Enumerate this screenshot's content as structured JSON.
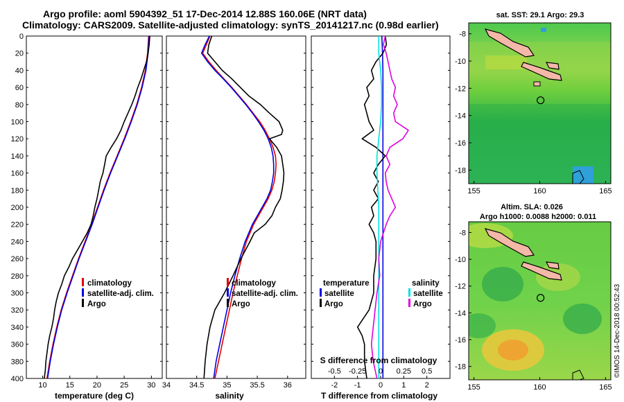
{
  "title_line1": "Argo profile: aoml 5904392_51 17-Dec-2014 12.88S 160.06E (NRT data)",
  "title_line2": "Climatology: CARS2009. Satellite-adjusted climatology: synTS_20141217.nc (0.98d earlier)",
  "credit": "©IMOS 14-Dec-2018 00:52:43",
  "colors": {
    "climatology": "#e00000",
    "satellite": "#0000e0",
    "argo": "#000000",
    "sat_cyan": "#00e0e0",
    "argo_magenta": "#e000e0"
  },
  "chart_data": [
    {
      "type": "line",
      "id": "temperature",
      "xlabel": "temperature (deg C)",
      "ylabel": "depth",
      "xlim": [
        7,
        32
      ],
      "ylim": [
        400,
        0
      ],
      "x_ticks": [
        "10",
        "15",
        "20",
        "25",
        "30"
      ],
      "y_ticks": [
        "0",
        "20",
        "40",
        "60",
        "80",
        "100",
        "120",
        "140",
        "160",
        "180",
        "200",
        "220",
        "240",
        "260",
        "280",
        "300",
        "320",
        "340",
        "360",
        "380",
        "400"
      ],
      "legend": [
        "climatology",
        "satellite-adj. clim.",
        "Argo"
      ],
      "series": [
        {
          "name": "climatology",
          "color": "#e00000",
          "depth": [
            0,
            20,
            40,
            60,
            80,
            100,
            120,
            140,
            160,
            180,
            200,
            220,
            240,
            260,
            280,
            300,
            320,
            340,
            360,
            380,
            400
          ],
          "values": [
            29.5,
            29.3,
            28.9,
            28.2,
            27.3,
            26.2,
            25.0,
            23.7,
            22.4,
            21.2,
            20.1,
            19.0,
            17.8,
            16.6,
            15.5,
            14.4,
            13.4,
            12.6,
            11.9,
            11.3,
            10.8
          ]
        },
        {
          "name": "satellite-adj. clim.",
          "color": "#0000e0",
          "depth": [
            0,
            20,
            40,
            60,
            80,
            100,
            120,
            140,
            160,
            180,
            200,
            220,
            240,
            260,
            280,
            300,
            320,
            340,
            360,
            380,
            400
          ],
          "values": [
            29.6,
            29.4,
            29.0,
            28.3,
            27.4,
            26.3,
            25.1,
            23.8,
            22.5,
            21.3,
            20.2,
            19.1,
            17.9,
            16.7,
            15.6,
            14.5,
            13.5,
            12.7,
            12.0,
            11.4,
            10.9
          ]
        },
        {
          "name": "Argo",
          "color": "#000000",
          "depth": [
            0,
            10,
            20,
            30,
            40,
            50,
            60,
            70,
            80,
            90,
            100,
            110,
            120,
            130,
            140,
            150,
            160,
            170,
            180,
            190,
            200,
            210,
            220,
            230,
            240,
            250,
            260,
            270,
            280,
            290,
            300,
            310,
            320,
            330,
            340,
            350,
            360,
            370,
            380,
            390,
            400
          ],
          "values": [
            29.7,
            29.6,
            29.4,
            29.1,
            28.6,
            28.1,
            27.5,
            27.0,
            26.4,
            25.7,
            25.0,
            24.4,
            23.6,
            22.6,
            21.7,
            21.4,
            21.1,
            20.6,
            20.3,
            20.0,
            19.6,
            19.3,
            18.9,
            18.2,
            17.3,
            16.4,
            15.5,
            14.8,
            14.0,
            13.5,
            12.9,
            12.5,
            12.2,
            12.0,
            11.7,
            11.3,
            11.0,
            10.8,
            10.6,
            10.5,
            10.3
          ]
        }
      ]
    },
    {
      "type": "line",
      "id": "salinity",
      "xlabel": "salinity",
      "ylabel": "depth",
      "xlim": [
        34.0,
        36.3
      ],
      "ylim": [
        400,
        0
      ],
      "x_ticks": [
        "34",
        "34.5",
        "35",
        "35.5",
        "36"
      ],
      "legend": [
        "climatology",
        "satellite-adj. clim.",
        "Argo"
      ],
      "series": [
        {
          "name": "climatology",
          "color": "#e00000",
          "depth": [
            0,
            10,
            20,
            30,
            40,
            50,
            60,
            70,
            80,
            90,
            100,
            110,
            120,
            130,
            140,
            150,
            160,
            170,
            180,
            190,
            200,
            210,
            220,
            240,
            260,
            280,
            300,
            320,
            340,
            360,
            380,
            400
          ],
          "values": [
            34.72,
            34.66,
            34.6,
            34.7,
            34.82,
            34.95,
            35.08,
            35.2,
            35.32,
            35.43,
            35.54,
            35.63,
            35.7,
            35.76,
            35.8,
            35.81,
            35.8,
            35.78,
            35.74,
            35.68,
            35.6,
            35.52,
            35.44,
            35.32,
            35.24,
            35.17,
            35.1,
            35.04,
            34.98,
            34.92,
            34.86,
            34.8
          ]
        },
        {
          "name": "satellite-adj. clim.",
          "color": "#0000e0",
          "depth": [
            0,
            10,
            20,
            30,
            40,
            50,
            60,
            70,
            80,
            90,
            100,
            110,
            120,
            130,
            140,
            150,
            160,
            170,
            180,
            190,
            200,
            210,
            220,
            240,
            260,
            280,
            300,
            320,
            340,
            360,
            380,
            400
          ],
          "values": [
            34.71,
            34.64,
            34.58,
            34.68,
            34.8,
            34.94,
            35.07,
            35.19,
            35.31,
            35.42,
            35.52,
            35.61,
            35.68,
            35.73,
            35.76,
            35.77,
            35.77,
            35.75,
            35.72,
            35.66,
            35.58,
            35.5,
            35.42,
            35.3,
            35.21,
            35.13,
            35.06,
            35.0,
            34.94,
            34.88,
            34.82,
            34.78
          ]
        },
        {
          "name": "Argo",
          "color": "#000000",
          "depth": [
            0,
            10,
            20,
            30,
            40,
            50,
            60,
            70,
            80,
            90,
            100,
            110,
            115,
            120,
            130,
            140,
            150,
            160,
            170,
            180,
            190,
            200,
            210,
            220,
            230,
            240,
            260,
            280,
            300,
            320,
            340,
            360,
            380,
            400
          ],
          "values": [
            34.75,
            34.7,
            34.68,
            34.8,
            34.92,
            35.08,
            35.22,
            35.36,
            35.55,
            35.7,
            35.86,
            35.92,
            35.9,
            35.7,
            35.82,
            35.9,
            35.92,
            35.94,
            35.93,
            35.91,
            35.88,
            35.8,
            35.74,
            35.63,
            35.45,
            35.38,
            35.23,
            35.1,
            34.96,
            34.8,
            34.72,
            34.67,
            34.64,
            34.62
          ]
        }
      ]
    },
    {
      "type": "line",
      "id": "differences",
      "xlabel": "T difference from climatology",
      "inner_label": "S difference from climatology",
      "ylabel": "depth",
      "xlim": [
        -3,
        3
      ],
      "ylim": [
        400,
        0
      ],
      "x_ticks": [
        "-2",
        "-1",
        "0",
        "1",
        "2"
      ],
      "s_xlim": [
        -0.75,
        0.75
      ],
      "s_ticks": [
        "-0.5",
        "-0.25",
        "0",
        "0.25",
        "0.5"
      ],
      "legend_temperature": {
        "header": "temperature",
        "items": [
          "satellite",
          "Argo"
        ]
      },
      "legend_salinity": {
        "header": "salinity",
        "items": [
          "satellite",
          "Argo"
        ]
      },
      "series": [
        {
          "name": "T satellite",
          "color": "#0000e0",
          "scale": "T",
          "depth": [
            0,
            20,
            40,
            60,
            80,
            100,
            120,
            140,
            160,
            180,
            200,
            220,
            240,
            260,
            280,
            300,
            320,
            340,
            360,
            380,
            400
          ],
          "values": [
            0.05,
            0.08,
            0.1,
            0.1,
            0.1,
            0.1,
            0.1,
            0.1,
            0.1,
            0.1,
            0.1,
            0.1,
            0.1,
            0.1,
            0.1,
            0.1,
            0.1,
            0.1,
            0.1,
            0.1,
            0.1
          ]
        },
        {
          "name": "T Argo",
          "color": "#000000",
          "scale": "T",
          "depth": [
            0,
            10,
            20,
            30,
            40,
            50,
            60,
            70,
            80,
            90,
            100,
            110,
            120,
            130,
            140,
            150,
            160,
            170,
            180,
            190,
            200,
            210,
            220,
            230,
            240,
            260,
            280,
            300,
            320,
            340,
            350,
            360,
            380,
            400
          ],
          "values": [
            0.2,
            0.25,
            0.1,
            -0.2,
            -0.4,
            -0.3,
            -0.6,
            -0.5,
            -0.7,
            -0.6,
            -0.5,
            -0.3,
            -0.8,
            -0.2,
            0.2,
            -0.1,
            -0.3,
            -0.1,
            -0.3,
            -0.1,
            -0.4,
            -0.3,
            -0.5,
            -0.3,
            -0.2,
            -0.2,
            -0.3,
            -0.3,
            -0.5,
            -1.0,
            -0.8,
            -0.7,
            -0.7,
            -0.6
          ]
        },
        {
          "name": "S satellite",
          "color": "#00e0e0",
          "scale": "S",
          "depth": [
            0,
            20,
            40,
            60,
            80,
            100,
            120,
            140,
            160,
            180,
            200,
            220,
            240,
            260,
            280,
            300,
            320,
            340,
            360,
            380,
            400
          ],
          "values": [
            -0.02,
            -0.02,
            0.0,
            0.01,
            0.01,
            0.0,
            -0.02,
            -0.04,
            -0.04,
            -0.03,
            -0.02,
            -0.02,
            -0.02,
            -0.02,
            -0.02,
            -0.02,
            -0.02,
            -0.02,
            -0.02,
            -0.02,
            -0.02
          ]
        },
        {
          "name": "S Argo",
          "color": "#e000e0",
          "scale": "S",
          "depth": [
            0,
            10,
            20,
            30,
            40,
            50,
            60,
            70,
            80,
            90,
            100,
            110,
            120,
            130,
            140,
            150,
            160,
            170,
            180,
            190,
            200,
            210,
            220,
            240,
            260,
            280,
            300,
            320,
            340,
            360,
            380,
            400
          ],
          "values": [
            0.05,
            0.03,
            0.06,
            0.08,
            0.1,
            0.12,
            0.16,
            0.14,
            0.18,
            0.14,
            0.16,
            0.3,
            0.24,
            0.1,
            0.06,
            0.1,
            0.05,
            0.06,
            0.08,
            0.12,
            0.16,
            0.1,
            0.06,
            0.0,
            -0.02,
            -0.01,
            -0.04,
            -0.06,
            -0.08,
            -0.1,
            -0.08,
            -0.04
          ]
        }
      ]
    },
    {
      "type": "heatmap",
      "id": "sst_map",
      "title": "sat. SST: 29.1  Argo: 29.3",
      "xlim": [
        154.6,
        165.4
      ],
      "ylim": [
        -19.0,
        -7.2
      ],
      "x_ticks": [
        "155",
        "160",
        "165"
      ],
      "y_ticks": [
        "-8",
        "-10",
        "-12",
        "-14",
        "-16",
        "-18"
      ],
      "argo_position": {
        "lon": 160.06,
        "lat": -12.88
      }
    },
    {
      "type": "heatmap",
      "id": "sla_map",
      "title": "Altim. SLA: 0.026",
      "subtitle": "Argo h1000: 0.0088 h2000: 0.011",
      "xlim": [
        154.6,
        165.4
      ],
      "ylim": [
        -19.0,
        -7.2
      ],
      "x_ticks": [
        "155",
        "160",
        "165"
      ],
      "y_ticks": [
        "-8",
        "-10",
        "-12",
        "-14",
        "-16",
        "-18"
      ],
      "argo_position": {
        "lon": 160.06,
        "lat": -12.88
      }
    }
  ]
}
